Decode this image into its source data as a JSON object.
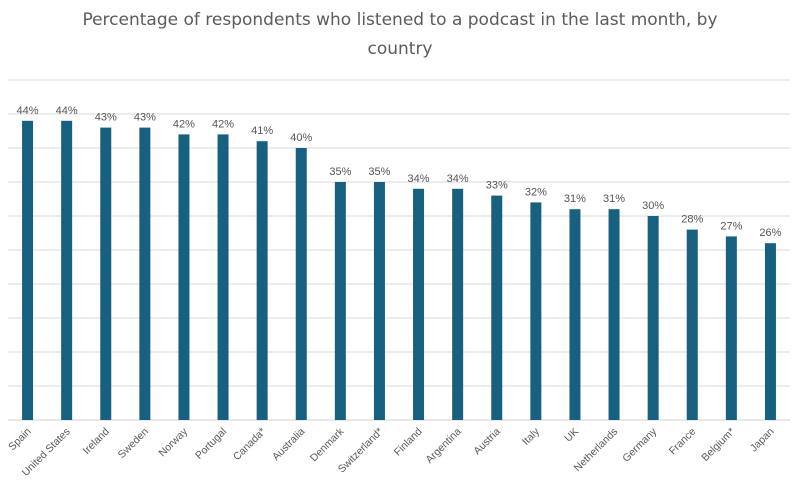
{
  "chart_data": {
    "type": "bar",
    "title": "Percentage of respondents who listened to a podcast in the last month, by country",
    "xlabel": "",
    "ylabel": "",
    "categories": [
      "Spain",
      "United States",
      "Ireland",
      "Sweden",
      "Norway",
      "Portugal",
      "Canada*",
      "Australia",
      "Denmark",
      "Switzerland*",
      "Finland",
      "Argentina",
      "Austria",
      "Italy",
      "UK",
      "Netherlands",
      "Germany",
      "France",
      "Belgium*",
      "Japan"
    ],
    "values": [
      44,
      44,
      43,
      43,
      42,
      42,
      41,
      40,
      35,
      35,
      34,
      34,
      33,
      32,
      31,
      31,
      30,
      28,
      27,
      26
    ],
    "value_labels": [
      "44%",
      "44%",
      "43%",
      "43%",
      "42%",
      "42%",
      "41%",
      "40%",
      "35%",
      "35%",
      "34%",
      "34%",
      "33%",
      "32%",
      "31%",
      "31%",
      "30%",
      "28%",
      "27%",
      "26%"
    ],
    "ylim": [
      0,
      50
    ],
    "grid": true,
    "legend": "none",
    "bar_color": "#17607f",
    "grid_color": "#d9d9d9"
  }
}
